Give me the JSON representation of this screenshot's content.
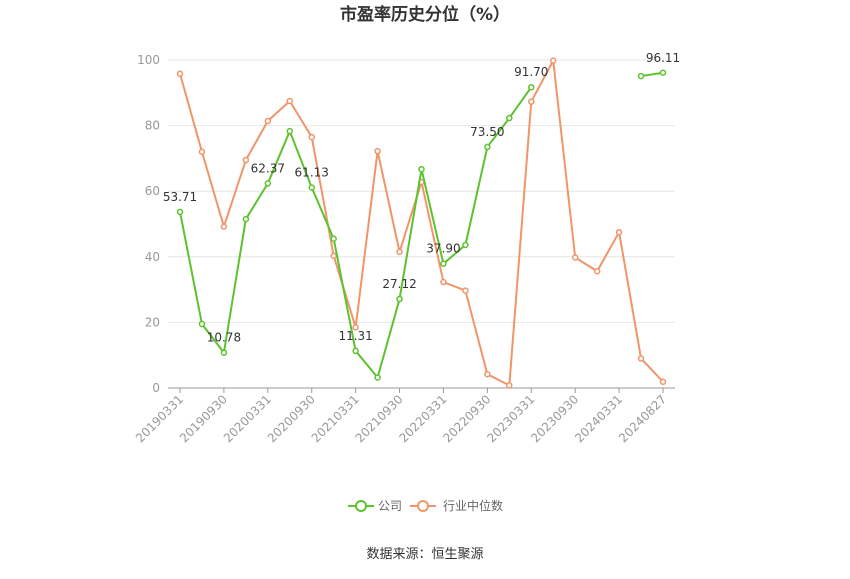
{
  "chart_data": {
    "type": "line",
    "title": "市盈率历史分位（%）",
    "source": "数据来源：恒生聚源",
    "ylim": [
      0,
      100
    ],
    "y_ticks": [
      0,
      20,
      40,
      60,
      80,
      100
    ],
    "grid": true,
    "legend_position": "bottom",
    "x_tick_labels": [
      "20190331",
      "20190930",
      "20200331",
      "20200930",
      "20210331",
      "20210930",
      "20220331",
      "20220930",
      "20230331",
      "20230930",
      "20240331",
      "20240827"
    ],
    "series": [
      {
        "name": "公司",
        "color": "#5cc22d",
        "values": [
          53.71,
          19.5,
          10.78,
          51.5,
          62.37,
          78.3,
          61.13,
          45.5,
          11.31,
          3.2,
          27.12,
          66.7,
          37.9,
          43.6,
          73.5,
          82.3,
          91.7,
          null,
          null,
          null,
          null,
          95.1,
          96.11
        ],
        "labels": [
          "53.71",
          null,
          "10.78",
          null,
          "62.37",
          null,
          "61.13",
          null,
          "11.31",
          null,
          "27.12",
          null,
          "37.90",
          null,
          "73.50",
          null,
          "91.70",
          null,
          null,
          null,
          null,
          null,
          "96.11"
        ]
      },
      {
        "name": "行业中位数",
        "color": "#f0956a",
        "values": [
          95.8,
          72.0,
          49.2,
          69.5,
          81.4,
          87.5,
          76.5,
          40.3,
          18.5,
          72.2,
          41.5,
          62.8,
          32.3,
          29.7,
          4.2,
          0.8,
          87.3,
          99.8,
          39.8,
          35.6,
          47.5,
          9.0,
          1.9
        ]
      }
    ]
  }
}
